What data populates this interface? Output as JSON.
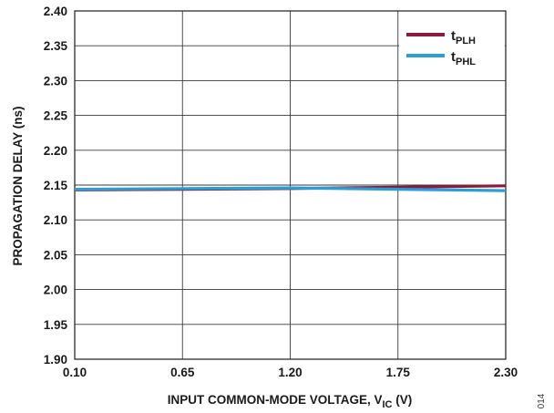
{
  "chart_data": {
    "type": "line",
    "xlabel": "INPUT COMMON-MODE VOLTAGE, V",
    "xlabel_subscript": "IC",
    "xlabel_unit": "(V)",
    "ylabel": "PROPAGATION DELAY (ns)",
    "xlim": [
      0.1,
      2.3
    ],
    "ylim": [
      1.9,
      2.4
    ],
    "x_ticks": [
      "0.10",
      "0.65",
      "1.20",
      "1.75",
      "2.30"
    ],
    "y_ticks": [
      "1.90",
      "1.95",
      "2.00",
      "2.05",
      "2.10",
      "2.15",
      "2.20",
      "2.25",
      "2.30",
      "2.35",
      "2.40"
    ],
    "grid": true,
    "legend_position": "top-right",
    "x": [
      0.1,
      0.65,
      1.2,
      1.75,
      2.3
    ],
    "series": [
      {
        "name": "t",
        "name_subscript": "PLH",
        "color": "#8b1a3d",
        "values": [
          2.143,
          2.144,
          2.145,
          2.147,
          2.149
        ]
      },
      {
        "name": "t",
        "name_subscript": "PHL",
        "color": "#2a9fd6",
        "values": [
          2.144,
          2.145,
          2.146,
          2.144,
          2.142
        ]
      }
    ]
  },
  "figure_id": "014"
}
